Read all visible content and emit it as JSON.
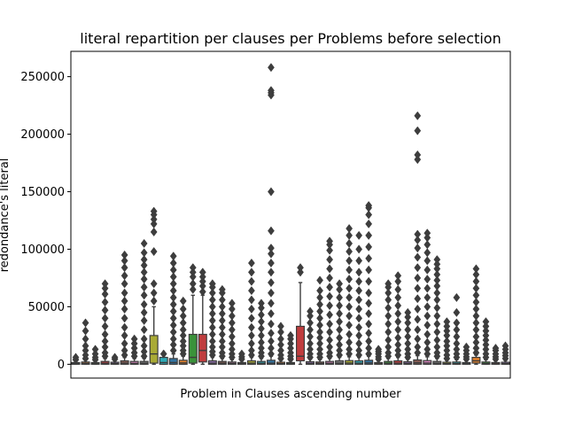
{
  "chart_data": {
    "type": "box",
    "title": "literal repartition per clauses per Problems before selection",
    "xlabel": "Problem in Clauses ascending number",
    "ylabel": "redondance's literal",
    "ylim": [
      -12000,
      272000
    ],
    "yticks": [
      0,
      50000,
      100000,
      150000,
      200000,
      250000
    ],
    "ytick_labels": [
      "0",
      "50000",
      "100000",
      "150000",
      "200000",
      "250000"
    ],
    "x_tick_labels": [],
    "grid": false,
    "legend": "none",
    "colors": [
      "#3274a1",
      "#e1812c",
      "#3a923a",
      "#c03d3e",
      "#9372b2",
      "#845b53",
      "#d684bd",
      "#7f7f7f",
      "#a9aa35",
      "#2eabb8"
    ],
    "boxes": [
      {
        "q1": 0,
        "median": 500,
        "q3": 1500,
        "whislo": 0,
        "whishi": 3000,
        "fliers": [
          4000,
          6000
        ]
      },
      {
        "q1": 0,
        "median": 800,
        "q3": 2000,
        "whislo": 0,
        "whishi": 4000,
        "fliers": [
          5000,
          8000,
          12000,
          16000,
          22000,
          29000,
          36000
        ]
      },
      {
        "q1": 0,
        "median": 500,
        "q3": 1500,
        "whislo": 0,
        "whishi": 3000,
        "fliers": [
          4000,
          6000,
          9000,
          13000
        ]
      },
      {
        "q1": 0,
        "median": 900,
        "q3": 2500,
        "whislo": 0,
        "whishi": 5000,
        "fliers": [
          7000,
          10000,
          15000,
          20000,
          26000,
          33000,
          40000,
          47000,
          54000,
          61000,
          66000,
          70000
        ]
      },
      {
        "q1": 0,
        "median": 600,
        "q3": 1800,
        "whislo": 0,
        "whishi": 3500,
        "fliers": [
          4500,
          6000
        ]
      },
      {
        "q1": 0,
        "median": 1000,
        "q3": 3000,
        "whislo": 0,
        "whishi": 6000,
        "fliers": [
          8000,
          12000,
          18000,
          25000,
          32000,
          40000,
          48000,
          55000,
          62000,
          70000,
          77000,
          84000,
          90000,
          95000
        ]
      },
      {
        "q1": 0,
        "median": 800,
        "q3": 2500,
        "whislo": 0,
        "whishi": 5000,
        "fliers": [
          7000,
          10000,
          14000,
          18000,
          22000
        ]
      },
      {
        "q1": 0,
        "median": 900,
        "q3": 2500,
        "whislo": 0,
        "whishi": 5000,
        "fliers": [
          7000,
          11000,
          16000,
          22000,
          30000,
          38000,
          45000,
          52000,
          60000,
          67000,
          74000,
          80000,
          86000,
          91000,
          97000,
          105000
        ]
      },
      {
        "q1": 1000,
        "median": 9000,
        "q3": 25000,
        "whislo": 0,
        "whishi": 50000,
        "fliers": [
          55000,
          62000,
          70000,
          98000,
          115000,
          122000,
          126000,
          130000,
          133000
        ]
      },
      {
        "q1": 0,
        "median": 1500,
        "q3": 6000,
        "whislo": 0,
        "whishi": 8000,
        "fliers": [
          9000
        ]
      },
      {
        "q1": 0,
        "median": 1500,
        "q3": 5000,
        "whislo": 0,
        "whishi": 9000,
        "fliers": [
          12000,
          17000,
          22000,
          28000,
          34000,
          40000,
          46000,
          52000,
          58000,
          64000,
          70000,
          76000,
          82000,
          88000,
          94000
        ]
      },
      {
        "q1": 0,
        "median": 1200,
        "q3": 3500,
        "whislo": 0,
        "whishi": 7000,
        "fliers": [
          9000,
          12000,
          16000,
          20000,
          25000,
          30000,
          36000,
          42000,
          48000,
          55000
        ]
      },
      {
        "q1": 1000,
        "median": 6000,
        "q3": 26000,
        "whislo": 0,
        "whishi": 60000,
        "fliers": [
          65000,
          70000,
          76000,
          80000,
          84000
        ]
      },
      {
        "q1": 2000,
        "median": 12000,
        "q3": 26000,
        "whislo": 0,
        "whishi": 60000,
        "fliers": [
          63000,
          68000,
          72000,
          76000,
          80000
        ]
      },
      {
        "q1": 0,
        "median": 1000,
        "q3": 3000,
        "whislo": 0,
        "whishi": 6000,
        "fliers": [
          8000,
          11000,
          15000,
          20000,
          26000,
          32000,
          38000,
          44000,
          50000,
          56000,
          62000,
          67000,
          70000
        ]
      },
      {
        "q1": 0,
        "median": 900,
        "q3": 2500,
        "whislo": 0,
        "whishi": 5000,
        "fliers": [
          7000,
          10000,
          15000,
          20000,
          26000,
          32000,
          38000,
          44000,
          50000,
          56000,
          62000,
          65000
        ]
      },
      {
        "q1": 0,
        "median": 800,
        "q3": 2000,
        "whislo": 0,
        "whishi": 4000,
        "fliers": [
          6000,
          9000,
          13000,
          18000,
          24000,
          30000,
          36000,
          42000,
          48000,
          53000
        ]
      },
      {
        "q1": 0,
        "median": 500,
        "q3": 1500,
        "whislo": 0,
        "whishi": 3000,
        "fliers": [
          4500,
          6500,
          9000
        ]
      },
      {
        "q1": 0,
        "median": 1000,
        "q3": 3000,
        "whislo": 0,
        "whishi": 6000,
        "fliers": [
          8000,
          12000,
          18000,
          25000,
          32000,
          40000,
          48000,
          56000,
          64000,
          72000,
          80000,
          88000
        ]
      },
      {
        "q1": 0,
        "median": 900,
        "q3": 2500,
        "whislo": 0,
        "whishi": 5000,
        "fliers": [
          7000,
          10000,
          14000,
          19000,
          25000,
          31000,
          37000,
          43000,
          49000,
          53000
        ]
      },
      {
        "q1": 0,
        "median": 1000,
        "q3": 3500,
        "whislo": 0,
        "whishi": 7000,
        "fliers": [
          9000,
          14000,
          20000,
          27000,
          35000,
          44000,
          53000,
          62000,
          71000,
          80000,
          88000,
          96000,
          101000,
          116000,
          150000,
          234000,
          236000,
          238000,
          258000
        ]
      },
      {
        "q1": 0,
        "median": 600,
        "q3": 1800,
        "whislo": 0,
        "whishi": 3500,
        "fliers": [
          5000,
          8000,
          12000,
          17000,
          22000,
          28000,
          33000
        ]
      },
      {
        "q1": 0,
        "median": 500,
        "q3": 1500,
        "whislo": 0,
        "whishi": 3000,
        "fliers": [
          4500,
          7000,
          10000,
          14000,
          18000,
          22000,
          25000
        ]
      },
      {
        "q1": 3000,
        "median": 7000,
        "q3": 33000,
        "whislo": 0,
        "whishi": 71000,
        "fliers": [
          80000,
          84000
        ]
      },
      {
        "q1": 0,
        "median": 800,
        "q3": 2200,
        "whislo": 0,
        "whishi": 4500,
        "fliers": [
          6000,
          9000,
          13000,
          18000,
          24000,
          30000,
          36000,
          42000,
          46000
        ]
      },
      {
        "q1": 0,
        "median": 700,
        "q3": 2000,
        "whislo": 0,
        "whishi": 4000,
        "fliers": [
          6000,
          9000,
          13000,
          18000,
          23000,
          28000,
          34000,
          40000,
          46000,
          52000,
          58000,
          64000,
          73000
        ]
      },
      {
        "q1": 0,
        "median": 900,
        "q3": 2500,
        "whislo": 0,
        "whishi": 5000,
        "fliers": [
          7000,
          10000,
          15000,
          21000,
          28000,
          35000,
          43000,
          51000,
          59000,
          67000,
          75000,
          83000,
          91000,
          99000,
          104000,
          107000
        ]
      },
      {
        "q1": 0,
        "median": 1000,
        "q3": 3000,
        "whislo": 0,
        "whishi": 6000,
        "fliers": [
          8000,
          12000,
          17000,
          23000,
          30000,
          37000,
          44000,
          51000,
          58000,
          65000,
          70000
        ]
      },
      {
        "q1": 0,
        "median": 1100,
        "q3": 3200,
        "whislo": 0,
        "whishi": 6500,
        "fliers": [
          9000,
          13000,
          19000,
          26000,
          34000,
          42000,
          50000,
          58000,
          66000,
          74000,
          82000,
          90000,
          98000,
          105000,
          112000,
          118000
        ]
      },
      {
        "q1": 0,
        "median": 1000,
        "q3": 3000,
        "whislo": 0,
        "whishi": 6000,
        "fliers": [
          8000,
          12000,
          18000,
          25000,
          32000,
          40000,
          48000,
          56000,
          64000,
          72000,
          80000,
          90000,
          100000,
          112000
        ]
      },
      {
        "q1": 0,
        "median": 1200,
        "q3": 3500,
        "whislo": 0,
        "whishi": 7000,
        "fliers": [
          9000,
          14000,
          20000,
          27000,
          35000,
          44000,
          53000,
          62000,
          72000,
          82000,
          92000,
          102000,
          112000,
          122000,
          130000,
          136000,
          138000
        ]
      },
      {
        "q1": 0,
        "median": 500,
        "q3": 1500,
        "whislo": 0,
        "whishi": 3000,
        "fliers": [
          4500,
          6500,
          9000,
          11000,
          13000
        ]
      },
      {
        "q1": 0,
        "median": 900,
        "q3": 2500,
        "whislo": 0,
        "whishi": 5000,
        "fliers": [
          7000,
          10000,
          15000,
          21000,
          28000,
          35000,
          42000,
          49000,
          56000,
          62000,
          67000,
          70000
        ]
      },
      {
        "q1": 0,
        "median": 1000,
        "q3": 3000,
        "whislo": 0,
        "whishi": 6000,
        "fliers": [
          8000,
          12000,
          17000,
          23000,
          30000,
          37000,
          44000,
          51000,
          58000,
          65000,
          72000,
          77000
        ]
      },
      {
        "q1": 0,
        "median": 800,
        "q3": 2200,
        "whislo": 0,
        "whishi": 4500,
        "fliers": [
          6000,
          9000,
          13000,
          18000,
          24000,
          30000,
          36000,
          41000,
          45000
        ]
      },
      {
        "q1": 0,
        "median": 1300,
        "q3": 3800,
        "whislo": 0,
        "whishi": 7500,
        "fliers": [
          10000,
          15000,
          22000,
          30000,
          39000,
          48000,
          57000,
          66000,
          75000,
          84000,
          93000,
          101000,
          108000,
          113000,
          178000,
          182000,
          203000,
          216000
        ]
      },
      {
        "q1": 0,
        "median": 1100,
        "q3": 3200,
        "whislo": 0,
        "whishi": 6500,
        "fliers": [
          9000,
          13000,
          19000,
          26000,
          34000,
          42000,
          50000,
          58000,
          66000,
          74000,
          82000,
          90000,
          97000,
          104000,
          110000,
          114000
        ]
      },
      {
        "q1": 0,
        "median": 900,
        "q3": 2500,
        "whislo": 0,
        "whishi": 5000,
        "fliers": [
          7000,
          10000,
          15000,
          21000,
          28000,
          35000,
          42000,
          49000,
          56000,
          62000,
          68000,
          73000,
          78000,
          83000,
          87000,
          91000
        ]
      },
      {
        "q1": 0,
        "median": 600,
        "q3": 1800,
        "whislo": 0,
        "whishi": 3500,
        "fliers": [
          5000,
          8000,
          12000,
          16000,
          20000,
          25000,
          29000,
          33000,
          37000
        ]
      },
      {
        "q1": 0,
        "median": 700,
        "q3": 2000,
        "whislo": 0,
        "whishi": 4000,
        "fliers": [
          6000,
          9000,
          13000,
          18000,
          24000,
          30000,
          36000,
          45000,
          58000
        ]
      },
      {
        "q1": 0,
        "median": 500,
        "q3": 1500,
        "whislo": 0,
        "whishi": 3000,
        "fliers": [
          4500,
          6500,
          9000,
          12000,
          15000
        ]
      },
      {
        "q1": 1000,
        "median": 3000,
        "q3": 6000,
        "whislo": 0,
        "whishi": 8000,
        "fliers": [
          10000,
          14000,
          19000,
          24000,
          30000,
          36000,
          42000,
          48000,
          54000,
          60000,
          66000,
          72000,
          78000,
          83000
        ]
      },
      {
        "q1": 0,
        "median": 700,
        "q3": 2000,
        "whislo": 0,
        "whishi": 4000,
        "fliers": [
          6000,
          9000,
          13000,
          17000,
          21000,
          25000,
          29000,
          33000,
          37000
        ]
      },
      {
        "q1": 0,
        "median": 500,
        "q3": 1500,
        "whislo": 0,
        "whishi": 3000,
        "fliers": [
          4500,
          6500,
          9000,
          12000,
          14000
        ]
      },
      {
        "q1": 0,
        "median": 600,
        "q3": 1800,
        "whislo": 0,
        "whishi": 3500,
        "fliers": [
          5000,
          7500,
          10000,
          13000,
          16000
        ]
      }
    ]
  }
}
